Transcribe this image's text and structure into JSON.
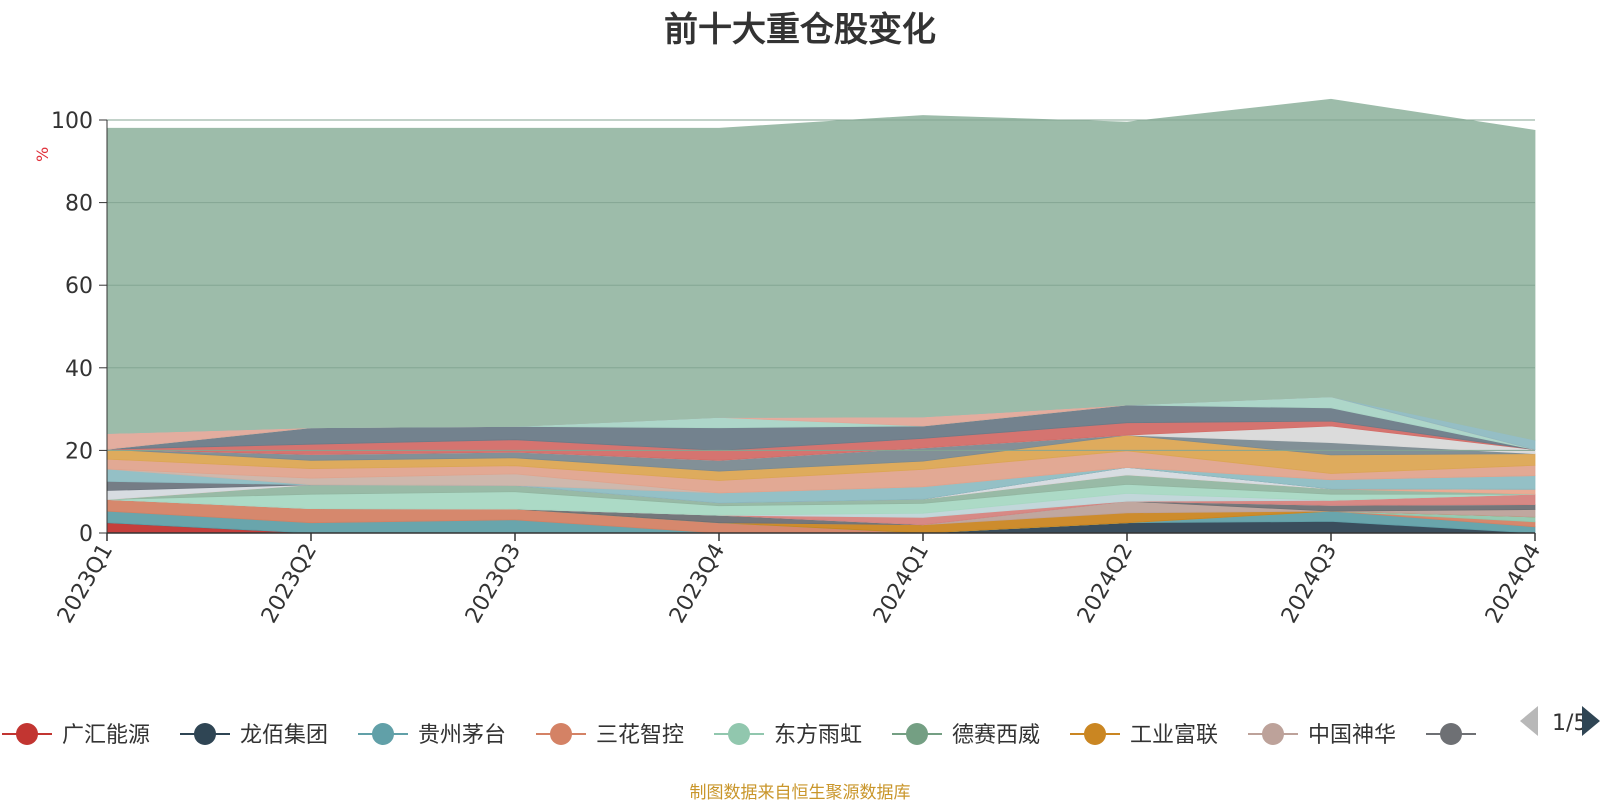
{
  "footnote": "制图数据来自恒生聚源数据库",
  "legend_page": "1/5",
  "colors": {
    "background_area": "#9dbcaa",
    "axis": "#333333",
    "grid": "#84a693",
    "ylabel": "#e0303a",
    "pager_inactive": "#b8b8b8",
    "pager_active": "#2f4554"
  },
  "chart_data": {
    "type": "area",
    "stacked": true,
    "title": "前十大重仓股变化",
    "xlabel": "",
    "ylabel": "%",
    "ylim": [
      0,
      100
    ],
    "yticks": [
      0,
      20,
      40,
      60,
      80,
      100
    ],
    "grid": true,
    "legend_position": "bottom",
    "categories": [
      "2023Q1",
      "2023Q2",
      "2023Q3",
      "2023Q4",
      "2024Q1",
      "2024Q2",
      "2024Q3",
      "2024Q4"
    ],
    "series": [
      {
        "name": "广汇能源",
        "color": "#c23531",
        "values": [
          2.5,
          0,
          0,
          0,
          0,
          0,
          0,
          0
        ]
      },
      {
        "name": "龙佰集团",
        "color": "#2f4554",
        "values": [
          0,
          0,
          0,
          0,
          0,
          2.5,
          2.8,
          0
        ]
      },
      {
        "name": "贵州茅台",
        "color": "#61a0a8",
        "values": [
          2.8,
          2.5,
          3.2,
          0,
          0,
          0,
          2.5,
          1.5
        ]
      },
      {
        "name": "三花智控",
        "color": "#d48265",
        "values": [
          2.8,
          3.4,
          2.6,
          2.5,
          0,
          0,
          0,
          1.2
        ]
      },
      {
        "name": "东方雨虹",
        "color": "#91c7ae",
        "values": [
          0,
          0,
          0,
          0,
          0,
          0,
          0,
          1.2
        ]
      },
      {
        "name": "德赛西威",
        "color": "#749f83",
        "values": [
          0,
          0,
          0,
          0,
          0,
          0,
          0,
          0
        ]
      },
      {
        "name": "工业富联",
        "color": "#ca8622",
        "values": [
          0,
          0,
          0,
          0,
          2.0,
          2.4,
          0,
          0
        ]
      },
      {
        "name": "中国神华",
        "color": "#bda29a",
        "values": [
          0,
          0,
          0,
          0,
          0,
          2.8,
          0,
          1.8
        ]
      },
      {
        "name": "",
        "color": "#6e7074",
        "values": [
          0,
          0,
          0,
          1.8,
          0,
          0,
          1.4,
          1.2
        ]
      },
      {
        "name": "",
        "color": "#c4ccd3",
        "values": [
          0,
          0,
          0,
          0,
          0,
          0,
          0,
          0
        ]
      },
      {
        "name": "",
        "color": "#d5837e",
        "values": [
          0,
          0,
          0,
          0,
          1.8,
          0,
          1.2,
          2.5
        ]
      },
      {
        "name": "",
        "color": "#bfd5d8",
        "values": [
          0,
          0,
          0,
          0,
          1.0,
          1.9,
          0,
          0
        ]
      },
      {
        "name": "",
        "color": "#a8d8c3",
        "values": [
          0,
          3.5,
          4.2,
          2.3,
          2.4,
          2.2,
          1.5,
          0
        ]
      },
      {
        "name": "",
        "color": "#92b6a1",
        "values": [
          0,
          2.3,
          1.5,
          0.7,
          1.0,
          2.3,
          1.3,
          0
        ]
      },
      {
        "name": "",
        "color": "#e8a88f",
        "values": [
          0,
          0,
          0,
          0,
          0,
          0,
          0,
          1.2
        ]
      },
      {
        "name": "",
        "color": "#d5dadf",
        "values": [
          2.2,
          0,
          0,
          0,
          0,
          1.8,
          0,
          0
        ]
      },
      {
        "name": "",
        "color": "#6e7680",
        "values": [
          2.2,
          0,
          0,
          0,
          0,
          0,
          0,
          0
        ]
      },
      {
        "name": "",
        "color": "#8ebdc3",
        "values": [
          3.0,
          0,
          0,
          2.4,
          3.0,
          0,
          2.2,
          3.3
        ]
      },
      {
        "name": "",
        "color": "#cbb4a9",
        "values": [
          0,
          1.6,
          2.8,
          0,
          0,
          0,
          0,
          0
        ]
      },
      {
        "name": "",
        "color": "#e0a48e",
        "values": [
          2.4,
          2.3,
          2.0,
          3.0,
          4.2,
          4.0,
          1.5,
          2.5
        ]
      },
      {
        "name": "",
        "color": "#dca654",
        "values": [
          2.4,
          2.0,
          1.9,
          2.3,
          2.0,
          3.8,
          4.5,
          2.8
        ]
      },
      {
        "name": "",
        "color": "#7b8a91",
        "values": [
          0,
          1.4,
          1.4,
          2.6,
          3.2,
          0,
          3.0,
          0
        ]
      },
      {
        "name": "",
        "color": "#d9d9d9",
        "values": [
          0,
          0,
          0,
          0,
          0,
          0,
          4.0,
          1.0
        ]
      },
      {
        "name": "",
        "color": "#d36d68",
        "values": [
          0,
          2.5,
          3.0,
          2.4,
          2.3,
          3.0,
          1.2,
          0
        ]
      },
      {
        "name": "",
        "color": "#6c7b88",
        "values": [
          0,
          4.0,
          3.2,
          5.5,
          3.0,
          4.3,
          3.2,
          0
        ]
      },
      {
        "name": "",
        "color": "#a9d4c6",
        "values": [
          0,
          0,
          0,
          2.5,
          0,
          0,
          2.7,
          0
        ]
      },
      {
        "name": "",
        "color": "#e1a99a",
        "values": [
          3.8,
          0,
          0,
          0,
          2.2,
          0,
          0,
          0
        ]
      },
      {
        "name": "",
        "color": "#8fbac2",
        "values": [
          0,
          0,
          0,
          0,
          0,
          0,
          0,
          2.3
        ]
      },
      {
        "name": "",
        "color": "#9dbcaa",
        "values": [
          73.9,
          72.5,
          72.2,
          70.0,
          73.0,
          68.5,
          72.0,
          75.0
        ]
      }
    ]
  }
}
